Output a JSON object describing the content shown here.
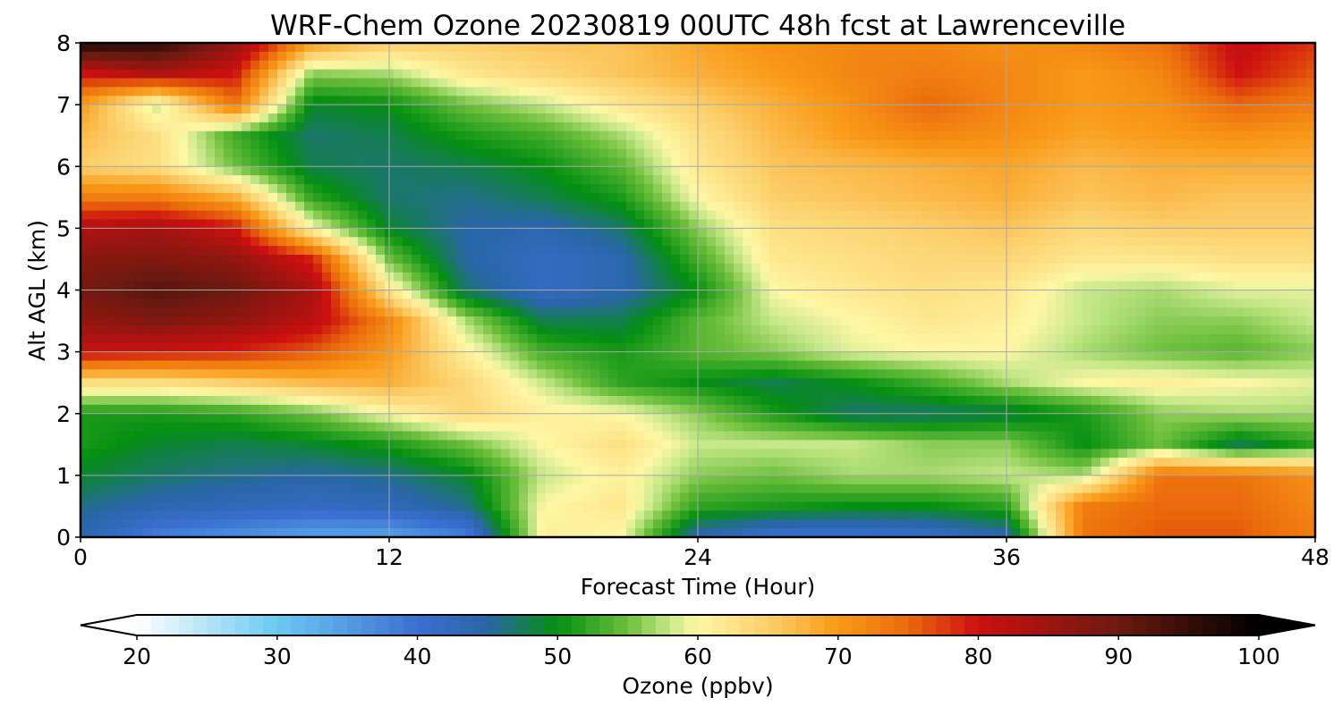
{
  "chart_data": {
    "type": "heatmap",
    "title": "WRF-Chem Ozone  20230819 00UTC 48h fcst at Lawrenceville",
    "xlabel": "Forecast Time (Hour)",
    "ylabel": "Alt AGL (km)",
    "xlim": [
      0,
      48
    ],
    "ylim": [
      0,
      8
    ],
    "xticks": [
      0,
      12,
      24,
      36,
      48
    ],
    "yticks": [
      0,
      1,
      2,
      3,
      4,
      5,
      6,
      7,
      8
    ],
    "grid": true,
    "x": [
      0,
      3,
      6,
      9,
      12,
      15,
      18,
      21,
      24,
      27,
      30,
      33,
      36,
      39,
      42,
      45,
      48
    ],
    "y": [
      0,
      0.5,
      1,
      1.5,
      2,
      2.5,
      3,
      3.5,
      4,
      4.5,
      5,
      5.5,
      6,
      6.5,
      7,
      7.5,
      8
    ],
    "z": [
      [
        44,
        38,
        36,
        34,
        34,
        38,
        61,
        60,
        44,
        40,
        40,
        41,
        44,
        74,
        76,
        76,
        73
      ],
      [
        46,
        44,
        43,
        42,
        43,
        46,
        60,
        62,
        52,
        51,
        50,
        50,
        52,
        73,
        75,
        75,
        72
      ],
      [
        49,
        47,
        46,
        45,
        46,
        49,
        58,
        61,
        56,
        55,
        57,
        57,
        58,
        57,
        74,
        74,
        71
      ],
      [
        51,
        49,
        48,
        49,
        51,
        55,
        60,
        63,
        58,
        58,
        58,
        56,
        56,
        50,
        55,
        48,
        52
      ],
      [
        51,
        51,
        52,
        55,
        60,
        64,
        61,
        60,
        56,
        51,
        47,
        47,
        48,
        51,
        56,
        57,
        57
      ],
      [
        63,
        63,
        65,
        67,
        68,
        64,
        58,
        52,
        50,
        48,
        50,
        53,
        57,
        60,
        61,
        60,
        59
      ],
      [
        81,
        80,
        79,
        76,
        70,
        61,
        53,
        51,
        54,
        56,
        59,
        60,
        60,
        57,
        55,
        54,
        56
      ],
      [
        86,
        88,
        86,
        82,
        72,
        57,
        48,
        48,
        54,
        58,
        60,
        62,
        61,
        58,
        56,
        56,
        58
      ],
      [
        89,
        92,
        90,
        84,
        62,
        47,
        42,
        44,
        50,
        60,
        62,
        63,
        62,
        58,
        57,
        59,
        59
      ],
      [
        87,
        88,
        86,
        79,
        55,
        45,
        42,
        44,
        53,
        62,
        63,
        64,
        64,
        62,
        62,
        63,
        63
      ],
      [
        83,
        84,
        80,
        60,
        49,
        45,
        44,
        47,
        56,
        63,
        64,
        65,
        66,
        64,
        65,
        65,
        65
      ],
      [
        73,
        73,
        68,
        52,
        47,
        46,
        48,
        51,
        60,
        65,
        66,
        67,
        68,
        66,
        67,
        66,
        66
      ],
      [
        65,
        63,
        55,
        48,
        47,
        48,
        50,
        54,
        62,
        66,
        67,
        68,
        69,
        67,
        68,
        68,
        68
      ],
      [
        67,
        63,
        53,
        47,
        48,
        51,
        53,
        57,
        63,
        67,
        70,
        72,
        71,
        69,
        70,
        71,
        70
      ],
      [
        70,
        58,
        74,
        49,
        50,
        55,
        58,
        62,
        65,
        68,
        71,
        75,
        72,
        70,
        71,
        75,
        73
      ],
      [
        80,
        83,
        80,
        56,
        57,
        62,
        64,
        66,
        68,
        70,
        72,
        73,
        72,
        70,
        72,
        80,
        76
      ],
      [
        97,
        96,
        86,
        70,
        65,
        65,
        66,
        66,
        69,
        71,
        72,
        72,
        71,
        72,
        74,
        81,
        78
      ]
    ],
    "colorbar": {
      "label": "Ozone  (ppbv)",
      "min": 20,
      "max": 100,
      "ticks": [
        20,
        30,
        40,
        50,
        60,
        70,
        80,
        90,
        100
      ],
      "extend": "both",
      "orientation": "horizontal",
      "colorstops": [
        {
          "v": 20,
          "c": "#ffffff"
        },
        {
          "v": 30,
          "c": "#6ac9f2"
        },
        {
          "v": 40,
          "c": "#3b6fd2"
        },
        {
          "v": 45,
          "c": "#2966a6"
        },
        {
          "v": 50,
          "c": "#058f11"
        },
        {
          "v": 55,
          "c": "#6cbf3c"
        },
        {
          "v": 58,
          "c": "#c7e88a"
        },
        {
          "v": 60,
          "c": "#fff7a6"
        },
        {
          "v": 65,
          "c": "#fccf6b"
        },
        {
          "v": 70,
          "c": "#f99a18"
        },
        {
          "v": 75,
          "c": "#ea6a0c"
        },
        {
          "v": 80,
          "c": "#cc1010"
        },
        {
          "v": 90,
          "c": "#6b1a10"
        },
        {
          "v": 100,
          "c": "#000000"
        }
      ]
    }
  }
}
